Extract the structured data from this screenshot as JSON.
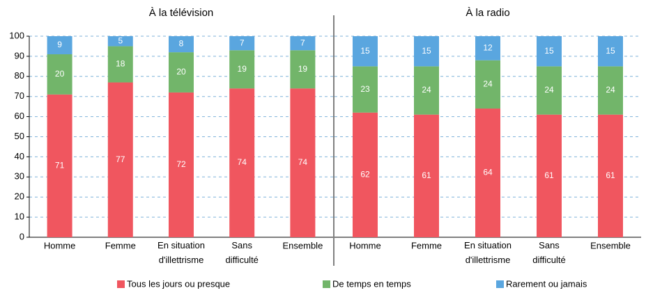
{
  "chart_data": [
    {
      "type": "bar",
      "stacked": true,
      "title": "À la télévision",
      "categories": [
        "Homme",
        "Femme",
        "En situation\nd'illettrisme",
        "Sans\ndifficulté",
        "Ensemble"
      ],
      "series": [
        {
          "name": "Tous les jours ou presque",
          "color": "#f0565f",
          "values": [
            71,
            77,
            72,
            74,
            74
          ]
        },
        {
          "name": "De temps en temps",
          "color": "#72b56a",
          "values": [
            20,
            18,
            20,
            19,
            19
          ]
        },
        {
          "name": "Rarement ou jamais",
          "color": "#5aa6df",
          "values": [
            9,
            5,
            8,
            7,
            7
          ]
        }
      ],
      "ylim": [
        0,
        100
      ],
      "yticks": [
        0,
        10,
        20,
        30,
        40,
        50,
        60,
        70,
        80,
        90,
        100
      ],
      "grid": true
    },
    {
      "type": "bar",
      "stacked": true,
      "title": "À la radio",
      "categories": [
        "Homme",
        "Femme",
        "En situation\nd'illettrisme",
        "Sans\ndifficulté",
        "Ensemble"
      ],
      "series": [
        {
          "color": "#f0565f",
          "values": [
            62,
            61,
            64,
            61,
            61
          ]
        },
        {
          "color": "#72b56a",
          "values": [
            23,
            24,
            24,
            24,
            24
          ]
        },
        {
          "color": "#5aa6df",
          "values": [
            15,
            15,
            12,
            15,
            15
          ]
        }
      ],
      "ylim": [
        0,
        100
      ],
      "grid": true
    }
  ]
}
